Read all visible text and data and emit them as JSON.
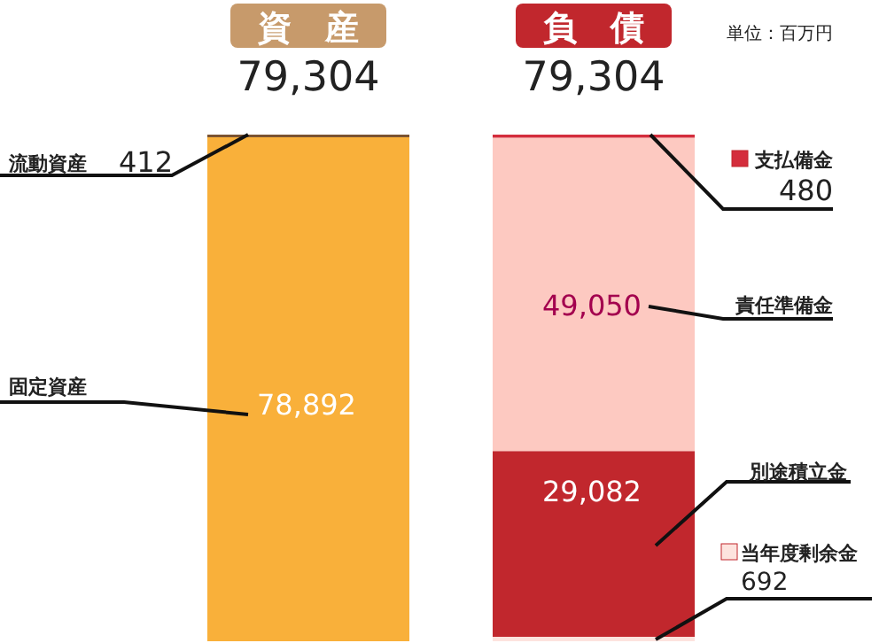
{
  "chart_data": {
    "type": "bar",
    "stacked": true,
    "categories": [
      "資　産",
      "負　債"
    ],
    "totals": [
      "79,304",
      "79,304"
    ],
    "annotations": [
      "単位：百万円"
    ],
    "legend": "right",
    "series": [
      {
        "name": "固定資産",
        "color": "#f9b03a",
        "values": [
          78892,
          null
        ],
        "value_labels": [
          "78,892",
          null
        ]
      },
      {
        "name": "流動資産",
        "color": "#7a5230",
        "values": [
          412,
          null
        ],
        "value_labels": [
          "412",
          null
        ]
      },
      {
        "name": "当年度剰余金",
        "color": "#fde3de",
        "values": [
          null,
          692
        ],
        "value_labels": [
          null,
          "692"
        ]
      },
      {
        "name": "別途積立金",
        "color": "#c1272d",
        "values": [
          null,
          29082
        ],
        "value_labels": [
          null,
          "29,082"
        ]
      },
      {
        "name": "責任準備金",
        "color": "#fdc9c1",
        "values": [
          null,
          49050
        ],
        "value_labels": [
          null,
          "49,050"
        ]
      },
      {
        "name": "支払備金",
        "color": "#d42d3c",
        "values": [
          null,
          480
        ],
        "value_labels": [
          null,
          "480"
        ]
      }
    ]
  }
}
